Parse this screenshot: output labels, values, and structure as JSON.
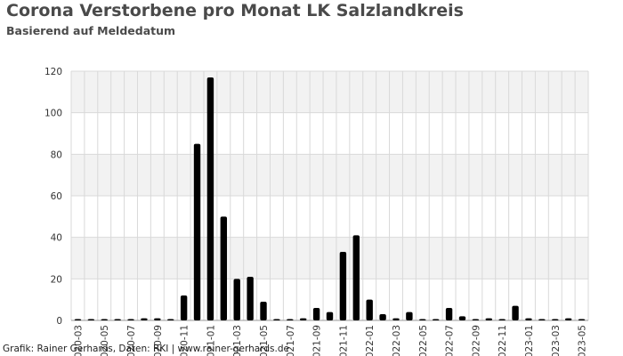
{
  "title": "Corona Verstorbene pro Monat LK Salzlandkreis",
  "subtitle": "Basierend auf Meldedatum",
  "footer": "Grafik: Rainer Gerhards, Daten: RKI | www.rainer-gerhards.de",
  "colors": {
    "bar": "#000000",
    "band_dark": "#f2f2f2",
    "band_light": "#ffffff",
    "grid": "#d9d9d9"
  },
  "chart_data": {
    "type": "bar",
    "title": "Corona Verstorbene pro Monat LK Salzlandkreis",
    "subtitle": "Basierend auf Meldedatum",
    "xlabel": "",
    "ylabel": "",
    "ylim": [
      0,
      120
    ],
    "yticks": [
      0,
      20,
      40,
      60,
      80,
      100,
      120
    ],
    "grid": true,
    "categories": [
      "2020-03",
      "2020-04",
      "2020-05",
      "2020-06",
      "2020-07",
      "2020-08",
      "2020-09",
      "2020-10",
      "2020-11",
      "2020-12",
      "2021-01",
      "2021-02",
      "2021-03",
      "2021-04",
      "2021-05",
      "2021-06",
      "2021-07",
      "2021-08",
      "2021-09",
      "2021-10",
      "2021-11",
      "2021-12",
      "2022-01",
      "2022-02",
      "2022-03",
      "2022-04",
      "2022-05",
      "2022-06",
      "2022-07",
      "2022-08",
      "2022-09",
      "2022-10",
      "2022-11",
      "2022-12",
      "2023-01",
      "2023-02",
      "2023-03",
      "2023-04",
      "2023-05"
    ],
    "x_tick_labels": [
      "2020-03",
      "2020-05",
      "2020-07",
      "2020-09",
      "2020-11",
      "2021-01",
      "2021-03",
      "2021-05",
      "2021-07",
      "2021-09",
      "2021-11",
      "2022-01",
      "2022-03",
      "2022-05",
      "2022-07",
      "2022-09",
      "2022-11",
      "2023-01",
      "2023-03",
      "2023-05"
    ],
    "values": [
      0,
      0,
      0,
      0,
      0,
      1,
      1,
      0,
      12,
      85,
      117,
      50,
      20,
      21,
      9,
      0,
      0,
      1,
      6,
      4,
      33,
      41,
      10,
      3,
      1,
      4,
      0,
      0,
      6,
      2,
      0,
      1,
      0,
      7,
      1,
      0,
      0,
      1,
      0
    ]
  }
}
